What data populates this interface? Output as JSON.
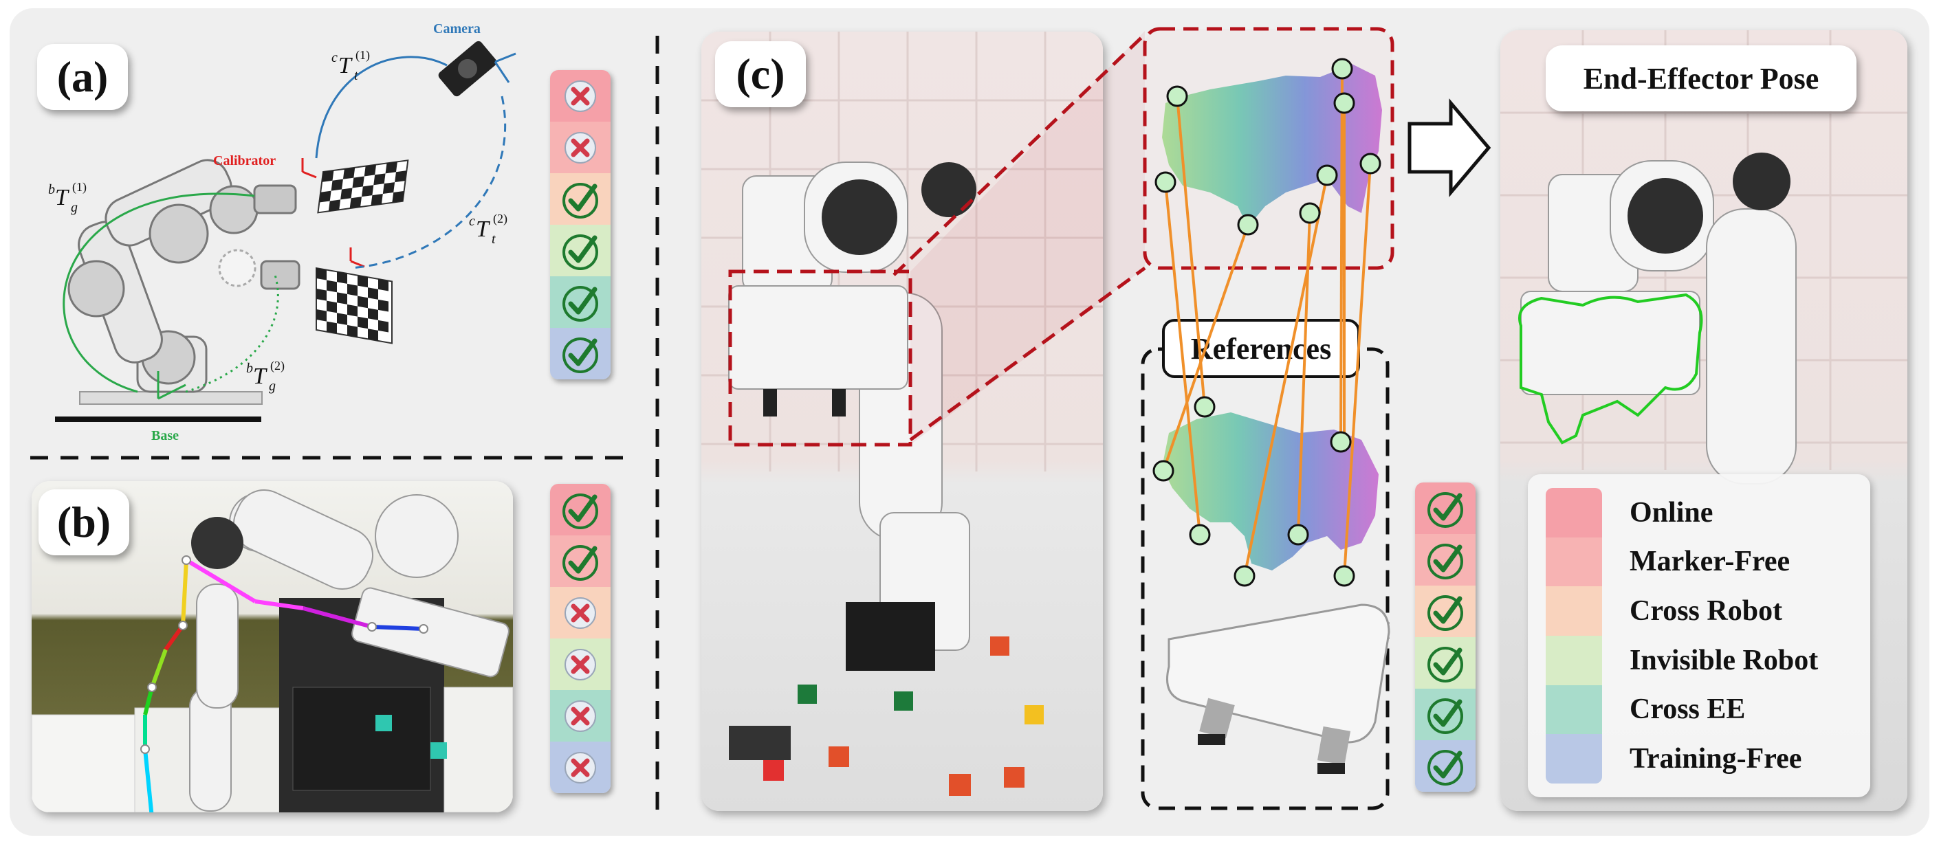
{
  "panel_labels": {
    "a": "(a)",
    "b": "(b)",
    "c": "(c)"
  },
  "panel_a": {
    "camera": "Camera",
    "calibrator": "Calibrator",
    "base": "Base",
    "eq_ct1": {
      "pre": "c",
      "T": "T",
      "sub": "t",
      "sup": "(1)"
    },
    "eq_ct2": {
      "pre": "c",
      "T": "T",
      "sub": "t",
      "sup": "(2)"
    },
    "eq_bt1": {
      "pre": "b",
      "T": "T",
      "sub": "g",
      "sup": "(1)"
    },
    "eq_bt2": {
      "pre": "b",
      "T": "T",
      "sub": "g",
      "sup": "(2)"
    },
    "marks": [
      "cross",
      "cross",
      "check",
      "check",
      "check",
      "check"
    ]
  },
  "panel_b": {
    "marks": [
      "check",
      "check",
      "cross",
      "cross",
      "cross",
      "cross"
    ]
  },
  "panel_c": {
    "references_label": "References",
    "end_effector_label": "End-Effector Pose",
    "marks": [
      "check",
      "check",
      "check",
      "check",
      "check",
      "check"
    ]
  },
  "legend": {
    "items": [
      "Online",
      "Marker-Free",
      "Cross Robot",
      "Invisible Robot",
      "Cross EE",
      "Training-Free"
    ],
    "colors": [
      "#f5a0a8",
      "#f7b3b3",
      "#f9d3bd",
      "#d8ecc6",
      "#a8dccb",
      "#b9c8e6"
    ]
  },
  "colors": {
    "red_dashed": "#b5121b",
    "camera_blue": "#2f78b8",
    "calibrator_red": "#e02020",
    "base_green": "#2aa84a",
    "match_line": "#f0902a",
    "keypoint_fill": "#c6f0c6",
    "contour_green": "#22cc22"
  }
}
